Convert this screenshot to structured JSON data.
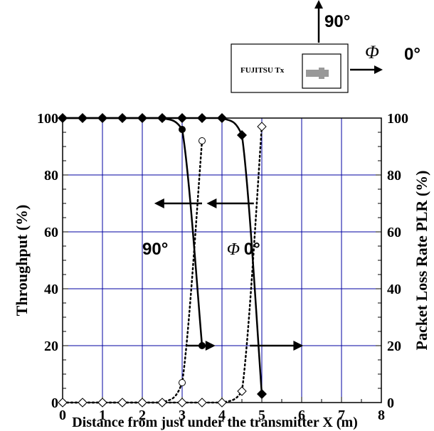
{
  "chart_data": {
    "type": "line",
    "x_label": "Distance from just under the transmitter X (m)",
    "y_left_label": "Throughput (%)",
    "y_right_label": "Packet Loss Rate  PLR (%)",
    "xlim": [
      0,
      8
    ],
    "ylim": [
      0,
      100
    ],
    "x_ticks": [
      "0",
      "1",
      "2",
      "3",
      "4",
      "5",
      "6",
      "7",
      "8"
    ],
    "y_ticks": [
      "0",
      "20",
      "40",
      "60",
      "80",
      "100"
    ],
    "grid": true,
    "series": [
      {
        "group": "90",
        "metric": "throughput",
        "marker": "filled-circle",
        "line": "solid",
        "x": [
          0,
          0.5,
          1,
          1.5,
          2,
          2.5,
          3,
          3.5
        ],
        "y": [
          100,
          100,
          100,
          100,
          100,
          100,
          96,
          20
        ]
      },
      {
        "group": "90",
        "metric": "plr",
        "marker": "open-circle",
        "line": "dotted",
        "x": [
          0,
          0.5,
          1,
          1.5,
          2,
          2.5,
          3,
          3.5
        ],
        "y": [
          0,
          0,
          0,
          0,
          0,
          0,
          7,
          92
        ]
      },
      {
        "group": "0",
        "metric": "throughput",
        "marker": "filled-diamond",
        "line": "solid",
        "x": [
          0,
          0.5,
          1,
          1.5,
          2,
          2.5,
          3,
          3.5,
          4,
          4.5,
          5
        ],
        "y": [
          100,
          100,
          100,
          100,
          100,
          100,
          100,
          100,
          100,
          94,
          3
        ]
      },
      {
        "group": "0",
        "metric": "plr",
        "marker": "open-diamond",
        "line": "dotted",
        "x": [
          0,
          0.5,
          1,
          1.5,
          2,
          2.5,
          3,
          3.5,
          4,
          4.5,
          5
        ],
        "y": [
          0,
          0,
          0,
          0,
          0,
          0,
          0,
          0,
          0,
          4,
          97
        ]
      }
    ],
    "annotations": {
      "label_90": "90°",
      "label_phi": "Φ",
      "label_0": "0°",
      "arrow_color": "#000000",
      "grid_color": "#0000a0"
    }
  },
  "inset": {
    "device_label": "FUJITSU Tx",
    "up_label": "90°",
    "phi_label": "Φ",
    "right_label": "0°"
  }
}
